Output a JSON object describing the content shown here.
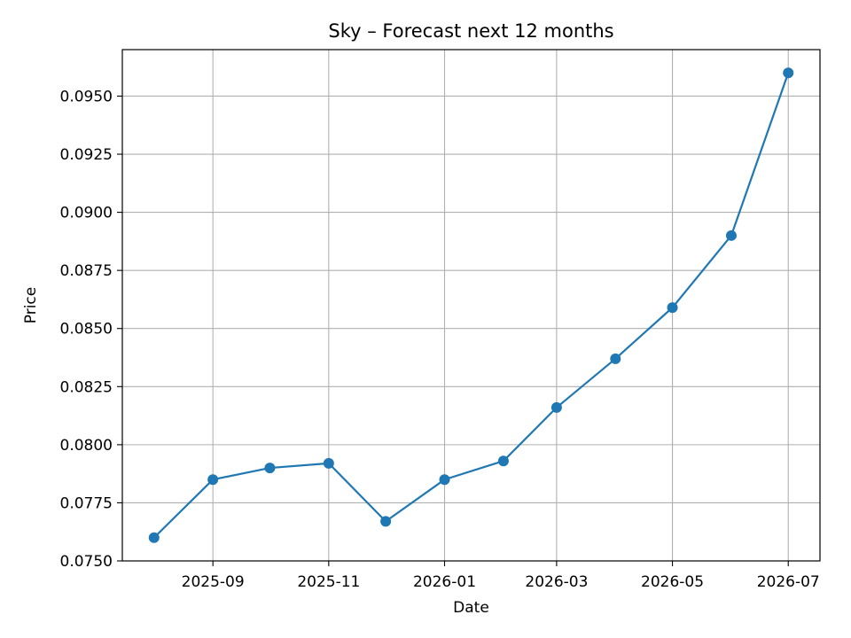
{
  "chart_data": {
    "type": "line",
    "title": "Sky – Forecast next 12 months",
    "xlabel": "Date",
    "ylabel": "Price",
    "x_tick_labels": [
      "2025-09",
      "2025-11",
      "2026-01",
      "2026-03",
      "2026-05",
      "2026-07"
    ],
    "y_tick_labels": [
      "0.0750",
      "0.0775",
      "0.0800",
      "0.0825",
      "0.0850",
      "0.0875",
      "0.0900",
      "0.0925",
      "0.0950"
    ],
    "ylim": [
      0.075,
      0.097
    ],
    "grid": true,
    "series": [
      {
        "color": "#1f77b4",
        "marker": "circle",
        "x": [
          "2025-08-01",
          "2025-09-01",
          "2025-10-01",
          "2025-11-01",
          "2025-12-01",
          "2026-01-01",
          "2026-02-01",
          "2026-03-01",
          "2026-04-01",
          "2026-05-01",
          "2026-06-01",
          "2026-07-01"
        ],
        "y": [
          0.076,
          0.0785,
          0.079,
          0.0792,
          0.0767,
          0.0785,
          0.0793,
          0.0816,
          0.0837,
          0.0859,
          0.089,
          0.096
        ]
      }
    ]
  }
}
